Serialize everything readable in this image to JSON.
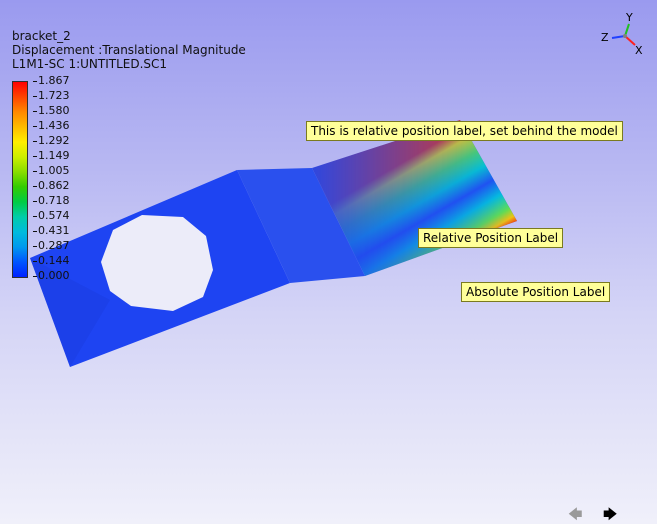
{
  "header": {
    "model_name": "bracket_2",
    "result_type": "Displacement :Translational Magnitude",
    "load_case": "L1M1-SC 1:UNTITLED.SC1"
  },
  "legend": {
    "values": [
      "1.867",
      "1.723",
      "1.580",
      "1.436",
      "1.292",
      "1.149",
      "1.005",
      "0.862",
      "0.718",
      "0.574",
      "0.431",
      "0.287",
      "0.144",
      "0.000"
    ],
    "colors": [
      "#ff0000",
      "#ff4400",
      "#ff8800",
      "#ffbb00",
      "#ffee00",
      "#ccee00",
      "#88dd00",
      "#33cc00",
      "#00cc44",
      "#00ccaa",
      "#00bbdd",
      "#0099ee",
      "#0055ff",
      "#0022ff"
    ]
  },
  "labels": {
    "behind_model": "This is relative position label, set behind the model",
    "relative_position": "Relative Position Label",
    "absolute_position": "Absolute Position Label"
  },
  "triad": {
    "x_axis": "X",
    "y_axis": "Y",
    "z_axis": "Z"
  },
  "nav": {
    "back_icon": "left-arrow-icon",
    "forward_icon": "right-arrow-icon"
  },
  "colors": {
    "label_fill": "#ffff99",
    "model_base": "#1e44f2",
    "background_top": "#9a9aef",
    "background_bottom": "#f0f0fa"
  }
}
